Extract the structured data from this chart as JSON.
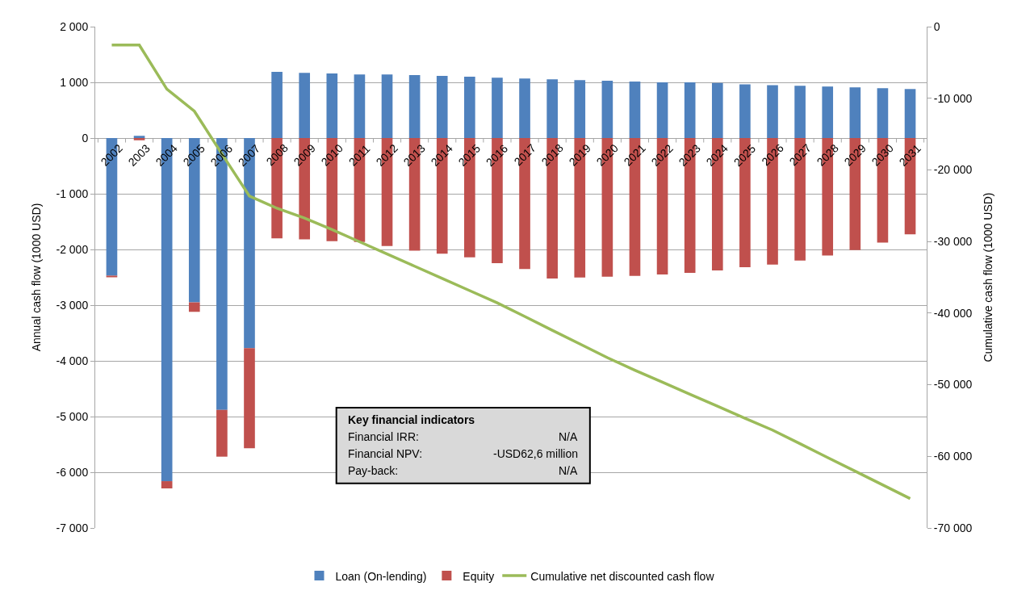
{
  "chart_data": {
    "type": "bar",
    "stacked": true,
    "ylabel": "Annual cash flow (1000 USD)",
    "y2label": "Cumulative cash flow (1000 USD)",
    "categories": [
      "2002",
      "2003",
      "2004",
      "2005",
      "2006",
      "2007",
      "2008",
      "2009",
      "2010",
      "2011",
      "2012",
      "2013",
      "2014",
      "2015",
      "2016",
      "2017",
      "2018",
      "2019",
      "2020",
      "2021",
      "2022",
      "2023",
      "2024",
      "2025",
      "2026",
      "2027",
      "2028",
      "2029",
      "2030",
      "2031"
    ],
    "series": [
      {
        "name": "Loan (On-lending)",
        "color": "#4f81bd",
        "values": [
          -2470,
          40,
          -6160,
          -2950,
          -4880,
          -3770,
          1190,
          1170,
          1160,
          1140,
          1140,
          1130,
          1115,
          1100,
          1085,
          1070,
          1055,
          1040,
          1030,
          1015,
          1000,
          1000,
          990,
          965,
          950,
          940,
          925,
          910,
          895,
          880
        ]
      },
      {
        "name": "Equity",
        "color": "#c0504d",
        "values": [
          -30,
          -40,
          -130,
          -170,
          -840,
          -1800,
          -1800,
          -1820,
          -1850,
          -1865,
          -1940,
          -2020,
          -2075,
          -2140,
          -2245,
          -2350,
          -2520,
          -2505,
          -2490,
          -2475,
          -2450,
          -2420,
          -2375,
          -2320,
          -2270,
          -2200,
          -2110,
          -2010,
          -1875,
          -1730
        ]
      },
      {
        "name": "Cumulative net discounted cash flow",
        "type": "line",
        "axis": "y2",
        "color": "#9bbb59",
        "values": [
          -2570,
          -2570,
          -8720,
          -11800,
          -17770,
          -23660,
          -25360,
          -26730,
          -28330,
          -30040,
          -31750,
          -33450,
          -35150,
          -36860,
          -38560,
          -40470,
          -42390,
          -44300,
          -46220,
          -47980,
          -49650,
          -51330,
          -53000,
          -54680,
          -56330,
          -58240,
          -60160,
          -62070,
          -63990,
          -65900
        ]
      }
    ],
    "ylim": [
      -7000,
      2000
    ],
    "yticks": [
      {
        "value": 2000,
        "label": "2 000"
      },
      {
        "value": 1000,
        "label": "1 000"
      },
      0,
      {
        "value": -1000,
        "label": "-1 000"
      },
      {
        "value": -2000,
        "label": "-2 000"
      },
      {
        "value": -3000,
        "label": "-3 000"
      },
      {
        "value": -4000,
        "label": "-4 000"
      },
      {
        "value": -5000,
        "label": "-5 000"
      },
      {
        "value": -6000,
        "label": "-6 000"
      },
      {
        "value": -7000,
        "label": "-7 000"
      }
    ],
    "y2lim": [
      -70000,
      0
    ],
    "y2ticks": [
      0,
      {
        "value": -10000,
        "label": "-10 000"
      },
      {
        "value": -20000,
        "label": "-20 000"
      },
      {
        "value": -30000,
        "label": "-30 000"
      },
      {
        "value": -40000,
        "label": "-40 000"
      },
      {
        "value": -50000,
        "label": "-50 000"
      },
      {
        "value": -60000,
        "label": "-60 000"
      },
      {
        "value": -70000,
        "label": "-70 000"
      }
    ],
    "grid": "y",
    "legend": "bottom",
    "marker": "none",
    "line_style": "solid",
    "annotations": [
      "Key financial indicators",
      "Financial IRR:",
      "N/A",
      "Financial NPV:",
      "-USD62,6 million",
      "Pay-back:",
      "N/A"
    ]
  }
}
